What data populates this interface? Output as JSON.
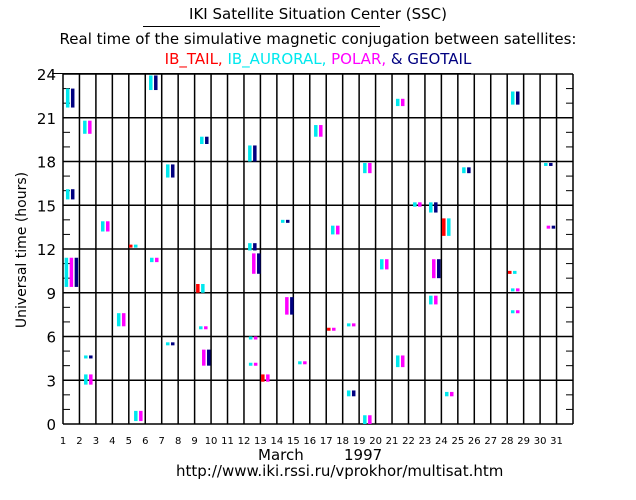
{
  "header": {
    "title": "IKI Satellite Situation Center (SSC)",
    "subtitle": "Real time of the simulative magnetic conjugation between satellites:",
    "legend": [
      {
        "label": "IB_TAIL,",
        "color": "#ff0000"
      },
      {
        "label": " IB_AURORAL,",
        "color": "#00e8ee"
      },
      {
        "label": " POLAR,",
        "color": "#ff00ff"
      },
      {
        "label": " & GEOTAIL",
        "color": "#000080"
      }
    ]
  },
  "footer": {
    "month": "March",
    "year": "1997",
    "url": "http://www.iki.rssi.ru/vprokhor/multisat.htm"
  },
  "chart_data": {
    "type": "scatter",
    "title": "Real time of the simulative magnetic conjugation between satellites",
    "xlabel": "March 1997",
    "ylabel": "Universal time (hours)",
    "xlim": [
      1,
      32
    ],
    "ylim": [
      0,
      24
    ],
    "x_ticks": [
      1,
      2,
      3,
      4,
      5,
      6,
      7,
      8,
      9,
      10,
      11,
      12,
      13,
      14,
      15,
      16,
      17,
      18,
      19,
      20,
      21,
      22,
      23,
      24,
      25,
      26,
      27,
      28,
      29,
      30,
      31
    ],
    "y_ticks": [
      0,
      3,
      6,
      9,
      12,
      15,
      18,
      21,
      24
    ],
    "grid": true,
    "satellite_colors": {
      "IB_TAIL": "#ff0000",
      "IB_AURORAL": "#00e8ee",
      "POLAR": "#ff00ff",
      "GEOTAIL": "#000080"
    },
    "events": [
      {
        "day": 1.18,
        "start": 21.7,
        "end": 23.0,
        "sats": [
          "IB_AURORAL",
          "GEOTAIL"
        ]
      },
      {
        "day": 2.22,
        "start": 19.9,
        "end": 20.8,
        "sats": [
          "IB_AURORAL",
          "POLAR"
        ]
      },
      {
        "day": 6.23,
        "start": 22.9,
        "end": 23.9,
        "sats": [
          "IB_AURORAL",
          "GEOTAIL"
        ]
      },
      {
        "day": 7.26,
        "start": 16.9,
        "end": 17.8,
        "sats": [
          "IB_AURORAL",
          "GEOTAIL"
        ]
      },
      {
        "day": 9.33,
        "start": 19.2,
        "end": 19.7,
        "sats": [
          "IB_AURORAL",
          "GEOTAIL"
        ]
      },
      {
        "day": 1.18,
        "start": 15.4,
        "end": 16.1,
        "sats": [
          "IB_AURORAL",
          "GEOTAIL"
        ]
      },
      {
        "day": 3.31,
        "start": 13.2,
        "end": 13.9,
        "sats": [
          "IB_AURORAL",
          "POLAR"
        ]
      },
      {
        "day": 5.01,
        "start": 12.1,
        "end": 12.3,
        "sats": [
          "IB_TAIL",
          "IB_AURORAL"
        ]
      },
      {
        "day": 1.1,
        "start": 9.4,
        "end": 11.4,
        "sats": [
          "IB_AURORAL",
          "POLAR",
          "GEOTAIL"
        ]
      },
      {
        "day": 6.29,
        "start": 11.1,
        "end": 11.4,
        "sats": [
          "IB_AURORAL",
          "POLAR"
        ]
      },
      {
        "day": 9.09,
        "start": 9.0,
        "end": 9.6,
        "sats": [
          "IB_TAIL",
          "IB_AURORAL"
        ]
      },
      {
        "day": 4.28,
        "start": 6.7,
        "end": 7.6,
        "sats": [
          "IB_AURORAL",
          "POLAR"
        ]
      },
      {
        "day": 9.27,
        "start": 6.6,
        "end": 6.7,
        "sats": [
          "IB_AURORAL",
          "POLAR"
        ]
      },
      {
        "day": 7.26,
        "start": 5.5,
        "end": 5.6,
        "sats": [
          "IB_AURORAL",
          "GEOTAIL"
        ]
      },
      {
        "day": 9.45,
        "start": 4.0,
        "end": 5.1,
        "sats": [
          "POLAR",
          "GEOTAIL"
        ]
      },
      {
        "day": 2.28,
        "start": 4.6,
        "end": 4.7,
        "sats": [
          "IB_AURORAL",
          "GEOTAIL"
        ]
      },
      {
        "day": 2.28,
        "start": 2.7,
        "end": 3.4,
        "sats": [
          "IB_AURORAL",
          "POLAR"
        ]
      },
      {
        "day": 5.32,
        "start": 0.2,
        "end": 0.9,
        "sats": [
          "IB_AURORAL",
          "POLAR"
        ]
      },
      {
        "day": 21.24,
        "start": 21.8,
        "end": 22.3,
        "sats": [
          "IB_AURORAL",
          "POLAR"
        ]
      },
      {
        "day": 16.26,
        "start": 19.7,
        "end": 20.5,
        "sats": [
          "IB_AURORAL",
          "POLAR"
        ]
      },
      {
        "day": 12.25,
        "start": 18.0,
        "end": 19.1,
        "sats": [
          "IB_AURORAL",
          "GEOTAIL"
        ]
      },
      {
        "day": 19.24,
        "start": 17.2,
        "end": 17.9,
        "sats": [
          "IB_AURORAL",
          "POLAR"
        ]
      },
      {
        "day": 22.28,
        "start": 14.9,
        "end": 15.2,
        "sats": [
          "IB_AURORAL",
          "POLAR"
        ]
      },
      {
        "day": 23.25,
        "start": 14.5,
        "end": 15.2,
        "sats": [
          "IB_AURORAL",
          "GEOTAIL"
        ]
      },
      {
        "day": 14.25,
        "start": 13.9,
        "end": 14.0,
        "sats": [
          "IB_AURORAL",
          "GEOTAIL"
        ]
      },
      {
        "day": 17.29,
        "start": 13.0,
        "end": 13.6,
        "sats": [
          "IB_AURORAL",
          "POLAR"
        ]
      },
      {
        "day": 12.25,
        "start": 11.9,
        "end": 12.4,
        "sats": [
          "IB_AURORAL",
          "GEOTAIL"
        ]
      },
      {
        "day": 12.49,
        "start": 10.3,
        "end": 11.7,
        "sats": [
          "POLAR",
          "GEOTAIL"
        ]
      },
      {
        "day": 20.27,
        "start": 10.6,
        "end": 11.3,
        "sats": [
          "IB_AURORAL",
          "POLAR"
        ]
      },
      {
        "day": 23.43,
        "start": 10.0,
        "end": 11.3,
        "sats": [
          "POLAR",
          "GEOTAIL"
        ]
      },
      {
        "day": 14.5,
        "start": 7.5,
        "end": 8.7,
        "sats": [
          "POLAR",
          "GEOTAIL"
        ]
      },
      {
        "day": 23.25,
        "start": 8.2,
        "end": 8.8,
        "sats": [
          "IB_AURORAL",
          "POLAR"
        ]
      },
      {
        "day": 17.05,
        "start": 6.5,
        "end": 6.6,
        "sats": [
          "IB_TAIL",
          "POLAR"
        ]
      },
      {
        "day": 18.26,
        "start": 6.7,
        "end": 6.9,
        "sats": [
          "IB_AURORAL",
          "POLAR"
        ]
      },
      {
        "day": 12.3,
        "start": 5.9,
        "end": 6.0,
        "sats": [
          "IB_AURORAL",
          "POLAR"
        ]
      },
      {
        "day": 15.29,
        "start": 4.2,
        "end": 4.3,
        "sats": [
          "IB_AURORAL",
          "POLAR"
        ]
      },
      {
        "day": 12.3,
        "start": 4.1,
        "end": 4.2,
        "sats": [
          "IB_AURORAL",
          "POLAR"
        ]
      },
      {
        "day": 21.24,
        "start": 3.9,
        "end": 4.7,
        "sats": [
          "IB_AURORAL",
          "POLAR"
        ]
      },
      {
        "day": 13.04,
        "start": 2.9,
        "end": 3.4,
        "sats": [
          "IB_TAIL",
          "POLAR"
        ]
      },
      {
        "day": 18.26,
        "start": 1.9,
        "end": 2.3,
        "sats": [
          "IB_AURORAL",
          "GEOTAIL"
        ]
      },
      {
        "day": 19.24,
        "start": 0.0,
        "end": 0.6,
        "sats": [
          "IB_AURORAL",
          "POLAR"
        ]
      },
      {
        "day": 28.23,
        "start": 21.9,
        "end": 22.8,
        "sats": [
          "IB_AURORAL",
          "GEOTAIL"
        ]
      },
      {
        "day": 25.26,
        "start": 17.2,
        "end": 17.6,
        "sats": [
          "IB_AURORAL",
          "GEOTAIL"
        ]
      },
      {
        "day": 30.24,
        "start": 17.8,
        "end": 17.9,
        "sats": [
          "IB_AURORAL",
          "GEOTAIL"
        ]
      },
      {
        "day": 24.04,
        "start": 12.9,
        "end": 14.1,
        "sats": [
          "IB_TAIL",
          "IB_AURORAL"
        ]
      },
      {
        "day": 30.4,
        "start": 13.5,
        "end": 13.6,
        "sats": [
          "POLAR",
          "GEOTAIL"
        ]
      },
      {
        "day": 28.05,
        "start": 10.4,
        "end": 10.5,
        "sats": [
          "IB_TAIL",
          "IB_AURORAL"
        ]
      },
      {
        "day": 28.23,
        "start": 9.2,
        "end": 9.3,
        "sats": [
          "IB_AURORAL",
          "POLAR"
        ]
      },
      {
        "day": 28.23,
        "start": 7.7,
        "end": 7.8,
        "sats": [
          "IB_AURORAL",
          "POLAR"
        ]
      },
      {
        "day": 24.22,
        "start": 1.9,
        "end": 2.2,
        "sats": [
          "IB_AURORAL",
          "POLAR"
        ]
      }
    ]
  }
}
